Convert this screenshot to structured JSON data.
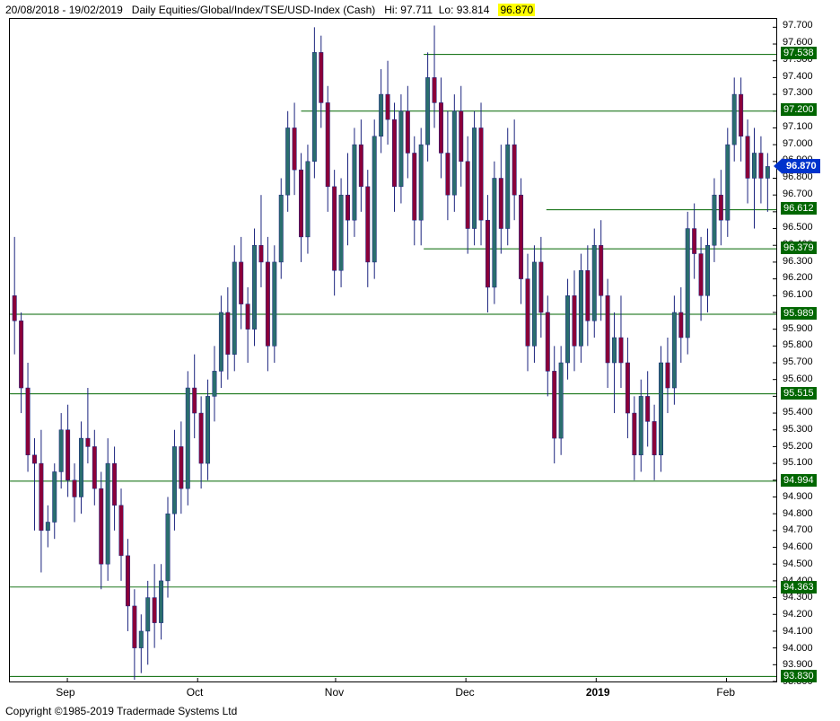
{
  "header": {
    "date_range": "20/08/2018 - 19/02/2019",
    "description": "Daily Equities/Global/Index/TSE/USD-Index (Cash)",
    "hi": "Hi: 97.711",
    "lo": "Lo: 93.814",
    "last_price": "96.870"
  },
  "copyright": "Copyright ©1985-2019 Tradermade Systems Ltd",
  "chart": {
    "type": "candlestick",
    "ylim": [
      93.8,
      97.75
    ],
    "ytick_step": 0.1,
    "ytick_labels": [
      "97.700",
      "97.600",
      "97.500",
      "97.400",
      "97.300",
      "97.200",
      "97.100",
      "97.000",
      "96.900",
      "96.800",
      "96.700",
      "96.600",
      "96.500",
      "96.400",
      "96.300",
      "96.200",
      "96.100",
      "96.000",
      "95.900",
      "95.800",
      "95.700",
      "95.600",
      "95.500",
      "95.400",
      "95.300",
      "95.200",
      "95.100",
      "95.000",
      "94.900",
      "94.800",
      "94.700",
      "94.600",
      "94.500",
      "94.400",
      "94.300",
      "94.200",
      "94.100",
      "94.000",
      "93.900",
      "93.800"
    ],
    "xticks": [
      {
        "label": "Sep",
        "pos": 0.075,
        "bold": false
      },
      {
        "label": "Oct",
        "pos": 0.245,
        "bold": false
      },
      {
        "label": "Nov",
        "pos": 0.425,
        "bold": false
      },
      {
        "label": "Dec",
        "pos": 0.595,
        "bold": false
      },
      {
        "label": "2019",
        "pos": 0.765,
        "bold": true
      },
      {
        "label": "Feb",
        "pos": 0.935,
        "bold": false
      }
    ],
    "horizontal_lines": [
      {
        "value": 97.538,
        "x_start": 0.54
      },
      {
        "value": 97.2,
        "x_start": 0.38
      },
      {
        "value": 96.612,
        "x_start": 0.7
      },
      {
        "value": 96.379,
        "x_start": 0.54
      },
      {
        "value": 95.989,
        "x_start": 0.0
      },
      {
        "value": 95.515,
        "x_start": 0.0
      },
      {
        "value": 94.994,
        "x_start": 0.0
      },
      {
        "value": 94.363,
        "x_start": 0.0
      },
      {
        "value": 93.83,
        "x_start": 0.0
      }
    ],
    "current_price": 96.87,
    "colors": {
      "wick": "#1a237e",
      "up_body": "#2a6e6e",
      "down_body": "#8b0039",
      "hline": "#006600",
      "hlabel_bg": "#006600",
      "price_marker": "#0033cc",
      "background": "#ffffff",
      "border": "#000000"
    },
    "candles": [
      {
        "o": 96.1,
        "h": 96.45,
        "l": 95.75,
        "c": 95.95
      },
      {
        "o": 95.95,
        "h": 96.0,
        "l": 95.4,
        "c": 95.55
      },
      {
        "o": 95.55,
        "h": 95.7,
        "l": 95.05,
        "c": 95.15
      },
      {
        "o": 95.15,
        "h": 95.25,
        "l": 94.7,
        "c": 95.1
      },
      {
        "o": 95.1,
        "h": 95.3,
        "l": 94.45,
        "c": 94.7
      },
      {
        "o": 94.7,
        "h": 94.85,
        "l": 94.6,
        "c": 94.75
      },
      {
        "o": 94.75,
        "h": 95.1,
        "l": 94.65,
        "c": 95.05
      },
      {
        "o": 95.05,
        "h": 95.4,
        "l": 94.95,
        "c": 95.3
      },
      {
        "o": 95.3,
        "h": 95.45,
        "l": 94.9,
        "c": 95.0
      },
      {
        "o": 95.0,
        "h": 95.1,
        "l": 94.75,
        "c": 94.9
      },
      {
        "o": 94.9,
        "h": 95.35,
        "l": 94.8,
        "c": 95.25
      },
      {
        "o": 95.25,
        "h": 95.55,
        "l": 95.1,
        "c": 95.2
      },
      {
        "o": 95.2,
        "h": 95.3,
        "l": 94.85,
        "c": 94.95
      },
      {
        "o": 94.95,
        "h": 95.05,
        "l": 94.35,
        "c": 94.5
      },
      {
        "o": 94.5,
        "h": 95.25,
        "l": 94.4,
        "c": 95.1
      },
      {
        "o": 95.1,
        "h": 95.2,
        "l": 94.7,
        "c": 94.85
      },
      {
        "o": 94.85,
        "h": 94.95,
        "l": 94.4,
        "c": 94.55
      },
      {
        "o": 94.55,
        "h": 94.65,
        "l": 94.1,
        "c": 94.25
      },
      {
        "o": 94.25,
        "h": 94.35,
        "l": 93.81,
        "c": 94.0
      },
      {
        "o": 94.0,
        "h": 94.2,
        "l": 93.85,
        "c": 94.1
      },
      {
        "o": 94.1,
        "h": 94.4,
        "l": 93.9,
        "c": 94.3
      },
      {
        "o": 94.3,
        "h": 94.5,
        "l": 94.0,
        "c": 94.15
      },
      {
        "o": 94.15,
        "h": 94.5,
        "l": 94.05,
        "c": 94.4
      },
      {
        "o": 94.4,
        "h": 94.9,
        "l": 94.3,
        "c": 94.8
      },
      {
        "o": 94.8,
        "h": 95.3,
        "l": 94.7,
        "c": 95.2
      },
      {
        "o": 95.2,
        "h": 95.35,
        "l": 94.8,
        "c": 94.95
      },
      {
        "o": 94.95,
        "h": 95.65,
        "l": 94.85,
        "c": 95.55
      },
      {
        "o": 95.55,
        "h": 95.75,
        "l": 95.25,
        "c": 95.4
      },
      {
        "o": 95.4,
        "h": 95.5,
        "l": 94.95,
        "c": 95.1
      },
      {
        "o": 95.1,
        "h": 95.6,
        "l": 95.0,
        "c": 95.5
      },
      {
        "o": 95.5,
        "h": 95.8,
        "l": 95.35,
        "c": 95.65
      },
      {
        "o": 95.65,
        "h": 96.1,
        "l": 95.55,
        "c": 96.0
      },
      {
        "o": 96.0,
        "h": 96.15,
        "l": 95.6,
        "c": 95.75
      },
      {
        "o": 95.75,
        "h": 96.4,
        "l": 95.65,
        "c": 96.3
      },
      {
        "o": 96.3,
        "h": 96.45,
        "l": 95.9,
        "c": 96.05
      },
      {
        "o": 96.05,
        "h": 96.15,
        "l": 95.7,
        "c": 95.9
      },
      {
        "o": 95.9,
        "h": 96.5,
        "l": 95.8,
        "c": 96.4
      },
      {
        "o": 96.4,
        "h": 96.7,
        "l": 96.15,
        "c": 96.3
      },
      {
        "o": 96.3,
        "h": 96.45,
        "l": 95.65,
        "c": 95.8
      },
      {
        "o": 95.8,
        "h": 96.4,
        "l": 95.7,
        "c": 96.3
      },
      {
        "o": 96.3,
        "h": 96.8,
        "l": 96.2,
        "c": 96.7
      },
      {
        "o": 96.7,
        "h": 97.2,
        "l": 96.6,
        "c": 97.1
      },
      {
        "o": 97.1,
        "h": 97.25,
        "l": 96.7,
        "c": 96.85
      },
      {
        "o": 96.85,
        "h": 96.95,
        "l": 96.3,
        "c": 96.45
      },
      {
        "o": 96.45,
        "h": 97.0,
        "l": 96.35,
        "c": 96.9
      },
      {
        "o": 96.9,
        "h": 97.7,
        "l": 96.8,
        "c": 97.55
      },
      {
        "o": 97.55,
        "h": 97.65,
        "l": 97.1,
        "c": 97.25
      },
      {
        "o": 97.25,
        "h": 97.35,
        "l": 96.6,
        "c": 96.75
      },
      {
        "o": 96.75,
        "h": 96.85,
        "l": 96.1,
        "c": 96.25
      },
      {
        "o": 96.25,
        "h": 96.8,
        "l": 96.15,
        "c": 96.7
      },
      {
        "o": 96.7,
        "h": 96.95,
        "l": 96.4,
        "c": 96.55
      },
      {
        "o": 96.55,
        "h": 97.1,
        "l": 96.45,
        "c": 97.0
      },
      {
        "o": 97.0,
        "h": 97.15,
        "l": 96.6,
        "c": 96.75
      },
      {
        "o": 96.75,
        "h": 96.85,
        "l": 96.15,
        "c": 96.3
      },
      {
        "o": 96.3,
        "h": 97.15,
        "l": 96.2,
        "c": 97.05
      },
      {
        "o": 97.05,
        "h": 97.45,
        "l": 96.95,
        "c": 97.3
      },
      {
        "o": 97.3,
        "h": 97.5,
        "l": 97.0,
        "c": 97.15
      },
      {
        "o": 97.15,
        "h": 97.25,
        "l": 96.6,
        "c": 96.75
      },
      {
        "o": 96.75,
        "h": 97.3,
        "l": 96.65,
        "c": 97.2
      },
      {
        "o": 97.2,
        "h": 97.35,
        "l": 96.8,
        "c": 96.95
      },
      {
        "o": 96.95,
        "h": 97.05,
        "l": 96.4,
        "c": 96.55
      },
      {
        "o": 96.55,
        "h": 97.1,
        "l": 96.4,
        "c": 97.0
      },
      {
        "o": 97.0,
        "h": 97.55,
        "l": 96.9,
        "c": 97.4
      },
      {
        "o": 97.4,
        "h": 97.71,
        "l": 97.1,
        "c": 97.25
      },
      {
        "o": 97.25,
        "h": 97.4,
        "l": 96.8,
        "c": 96.95
      },
      {
        "o": 96.95,
        "h": 97.2,
        "l": 96.55,
        "c": 96.7
      },
      {
        "o": 96.7,
        "h": 97.3,
        "l": 96.6,
        "c": 97.2
      },
      {
        "o": 97.2,
        "h": 97.35,
        "l": 96.75,
        "c": 96.9
      },
      {
        "o": 96.9,
        "h": 97.05,
        "l": 96.35,
        "c": 96.5
      },
      {
        "o": 96.5,
        "h": 97.2,
        "l": 96.4,
        "c": 97.1
      },
      {
        "o": 97.1,
        "h": 97.25,
        "l": 96.4,
        "c": 96.55
      },
      {
        "o": 96.55,
        "h": 96.7,
        "l": 96.0,
        "c": 96.15
      },
      {
        "o": 96.15,
        "h": 96.9,
        "l": 96.05,
        "c": 96.8
      },
      {
        "o": 96.8,
        "h": 97.0,
        "l": 96.35,
        "c": 96.5
      },
      {
        "o": 96.5,
        "h": 97.1,
        "l": 96.4,
        "c": 97.0
      },
      {
        "o": 97.0,
        "h": 97.15,
        "l": 96.55,
        "c": 96.7
      },
      {
        "o": 96.7,
        "h": 96.8,
        "l": 96.05,
        "c": 96.2
      },
      {
        "o": 96.2,
        "h": 96.35,
        "l": 95.65,
        "c": 95.8
      },
      {
        "o": 95.8,
        "h": 96.4,
        "l": 95.7,
        "c": 96.3
      },
      {
        "o": 96.3,
        "h": 96.45,
        "l": 95.85,
        "c": 96.0
      },
      {
        "o": 96.0,
        "h": 96.1,
        "l": 95.5,
        "c": 95.65
      },
      {
        "o": 95.65,
        "h": 95.8,
        "l": 95.1,
        "c": 95.25
      },
      {
        "o": 95.25,
        "h": 95.8,
        "l": 95.15,
        "c": 95.7
      },
      {
        "o": 95.7,
        "h": 96.2,
        "l": 95.6,
        "c": 96.1
      },
      {
        "o": 96.1,
        "h": 96.25,
        "l": 95.65,
        "c": 95.8
      },
      {
        "o": 95.8,
        "h": 96.35,
        "l": 95.7,
        "c": 96.25
      },
      {
        "o": 96.25,
        "h": 96.4,
        "l": 95.8,
        "c": 95.95
      },
      {
        "o": 95.95,
        "h": 96.5,
        "l": 95.85,
        "c": 96.4
      },
      {
        "o": 96.4,
        "h": 96.55,
        "l": 95.95,
        "c": 96.1
      },
      {
        "o": 96.1,
        "h": 96.2,
        "l": 95.55,
        "c": 95.7
      },
      {
        "o": 95.7,
        "h": 96.0,
        "l": 95.4,
        "c": 95.85
      },
      {
        "o": 95.85,
        "h": 96.1,
        "l": 95.55,
        "c": 95.7
      },
      {
        "o": 95.7,
        "h": 95.85,
        "l": 95.25,
        "c": 95.4
      },
      {
        "o": 95.4,
        "h": 95.5,
        "l": 95.0,
        "c": 95.15
      },
      {
        "o": 95.15,
        "h": 95.6,
        "l": 95.05,
        "c": 95.5
      },
      {
        "o": 95.5,
        "h": 95.65,
        "l": 95.2,
        "c": 95.35
      },
      {
        "o": 95.35,
        "h": 95.45,
        "l": 95.0,
        "c": 95.15
      },
      {
        "o": 95.15,
        "h": 95.8,
        "l": 95.05,
        "c": 95.7
      },
      {
        "o": 95.7,
        "h": 95.85,
        "l": 95.4,
        "c": 95.55
      },
      {
        "o": 95.55,
        "h": 96.1,
        "l": 95.45,
        "c": 96.0
      },
      {
        "o": 96.0,
        "h": 96.15,
        "l": 95.7,
        "c": 95.85
      },
      {
        "o": 95.85,
        "h": 96.6,
        "l": 95.75,
        "c": 96.5
      },
      {
        "o": 96.5,
        "h": 96.65,
        "l": 96.2,
        "c": 96.35
      },
      {
        "o": 96.35,
        "h": 96.45,
        "l": 95.95,
        "c": 96.1
      },
      {
        "o": 96.1,
        "h": 96.5,
        "l": 96.0,
        "c": 96.4
      },
      {
        "o": 96.4,
        "h": 96.8,
        "l": 96.3,
        "c": 96.7
      },
      {
        "o": 96.7,
        "h": 96.85,
        "l": 96.4,
        "c": 96.55
      },
      {
        "o": 96.55,
        "h": 97.1,
        "l": 96.45,
        "c": 97.0
      },
      {
        "o": 97.0,
        "h": 97.4,
        "l": 96.9,
        "c": 97.3
      },
      {
        "o": 97.3,
        "h": 97.4,
        "l": 96.9,
        "c": 97.05
      },
      {
        "o": 97.05,
        "h": 97.15,
        "l": 96.65,
        "c": 96.8
      },
      {
        "o": 96.8,
        "h": 97.1,
        "l": 96.5,
        "c": 96.95
      },
      {
        "o": 96.95,
        "h": 97.05,
        "l": 96.65,
        "c": 96.8
      },
      {
        "o": 96.8,
        "h": 96.95,
        "l": 96.6,
        "c": 96.87
      }
    ]
  }
}
